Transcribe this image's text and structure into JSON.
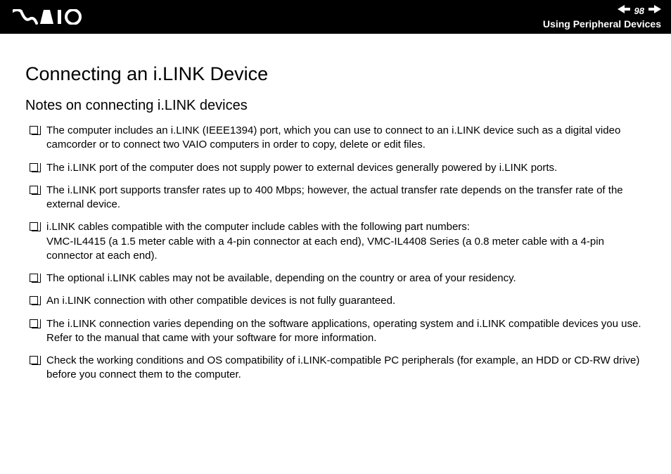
{
  "header": {
    "page_number": "98",
    "section_title": "Using Peripheral Devices"
  },
  "content": {
    "title": "Connecting an i.LINK Device",
    "subtitle": "Notes on connecting i.LINK devices",
    "items": [
      "The computer includes an i.LINK (IEEE1394) port, which you can use to connect to an i.LINK device such as a digital video camcorder or to connect two VAIO computers in order to copy, delete or edit files.",
      "The i.LINK port of the computer does not supply power to external devices generally powered by i.LINK ports.",
      "The i.LINK port supports transfer rates up to 400 Mbps; however, the actual transfer rate depends on the transfer rate of the external device.",
      "i.LINK cables compatible with the computer include cables with the following part numbers:\nVMC-IL4415 (a 1.5 meter cable with a 4-pin connector at each end), VMC-IL4408 Series (a 0.8 meter cable with a 4-pin connector at each end).",
      "The optional i.LINK cables may not be available, depending on the country or area of your residency.",
      "An i.LINK connection with other compatible devices is not fully guaranteed.",
      "The i.LINK connection varies depending on the software applications, operating system and i.LINK compatible devices you use. Refer to the manual that came with your software for more information.",
      "Check the working conditions and OS compatibility of i.LINK-compatible PC peripherals (for example, an HDD or CD-RW drive) before you connect them to the computer."
    ]
  }
}
